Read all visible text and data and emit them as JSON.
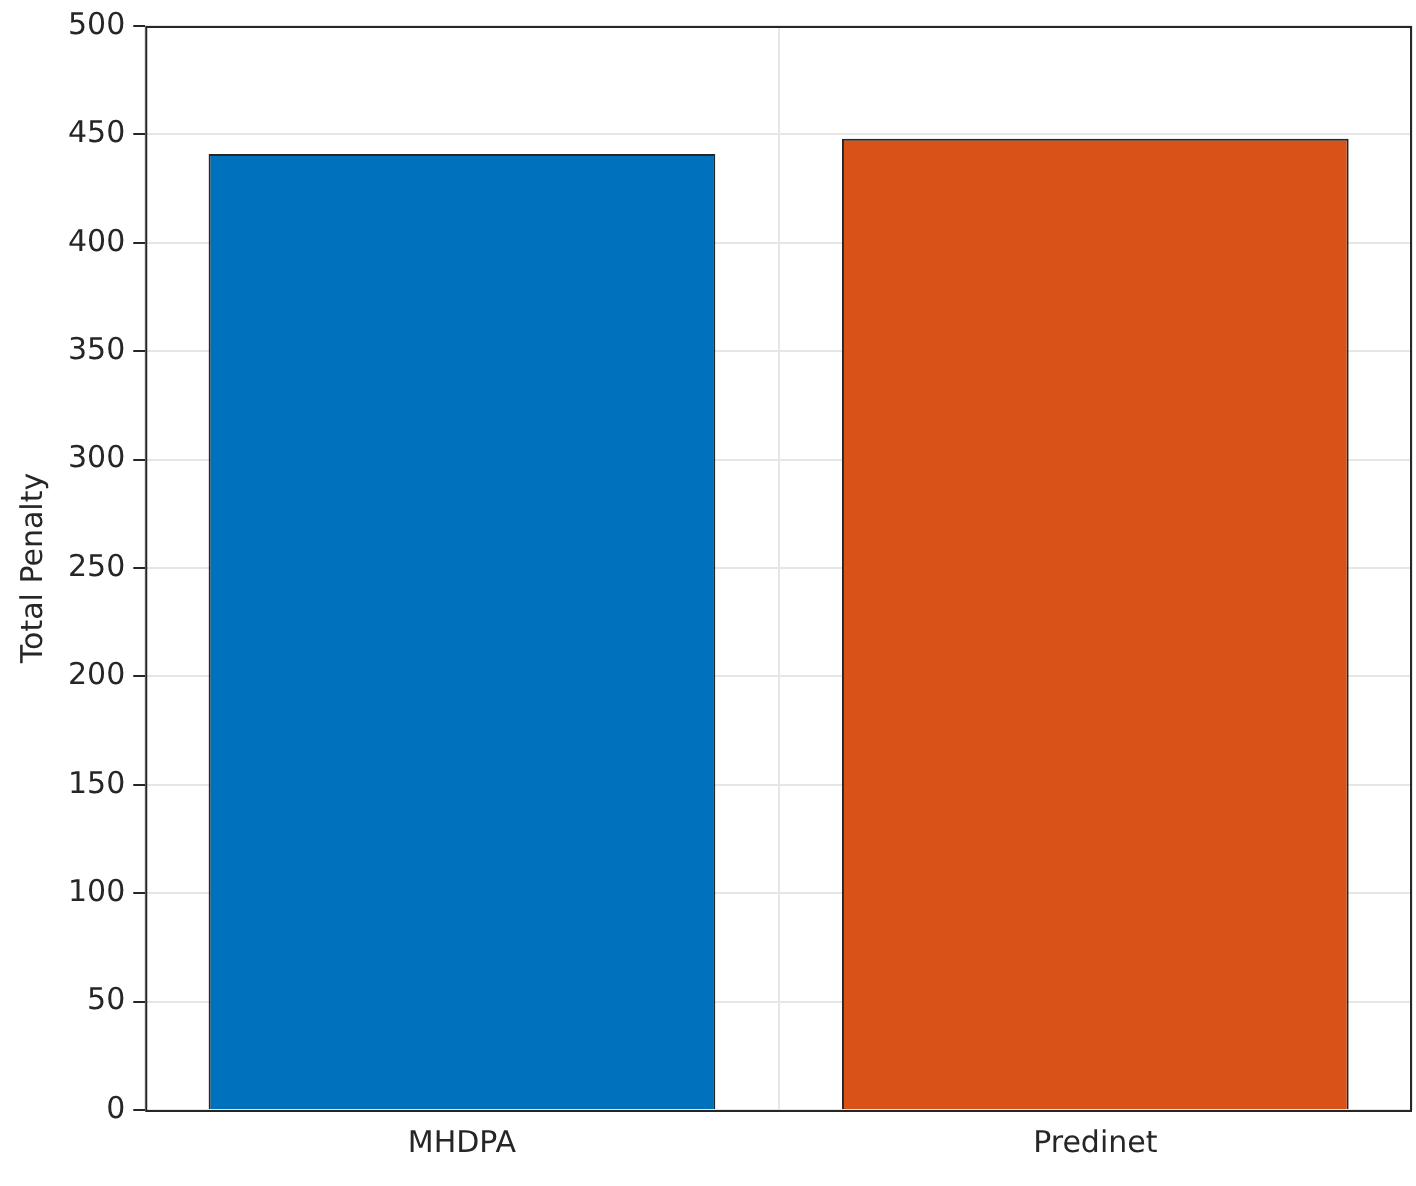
{
  "chart_data": {
    "type": "bar",
    "ylabel": "Total Penalty",
    "categories": [
      "MHDPA",
      "Predinet"
    ],
    "values": [
      441,
      448
    ],
    "colors": [
      "#0072bd",
      "#d95319"
    ],
    "ylim": [
      0,
      500
    ],
    "yticks": [
      0,
      50,
      100,
      150,
      200,
      250,
      300,
      350,
      400,
      450,
      500
    ],
    "grid": true
  }
}
